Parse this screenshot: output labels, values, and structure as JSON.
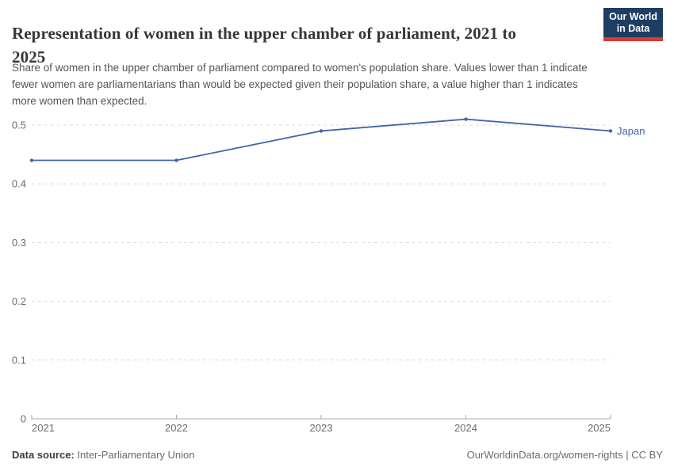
{
  "header": {
    "title": "Representation of women in the upper chamber of parliament, 2021 to 2025",
    "title_lines": [
      "Representation of women in the upper chamber of parliament, 2021 to",
      "2025"
    ],
    "subtitle": "Share of women in the upper chamber of parliament compared to women's population share. Values lower than 1 indicate fewer women are parliamentarians than would be expected given their population share, a value higher than 1 indicates more women than expected.",
    "subtitle_lines": [
      "Share of women in the upper chamber of parliament compared to women's population share. Values lower than 1 indicate",
      "fewer women are parliamentarians than would be expected given their population share, a value higher than 1 indicates",
      "more women than expected."
    ],
    "logo": {
      "line1": "Our World",
      "line2": "in Data",
      "bg_color": "#1d3d63",
      "accent_color": "#d93a34"
    }
  },
  "chart_data": {
    "type": "line",
    "title": "Representation of women in the upper chamber of parliament, 2021 to 2025",
    "x": [
      2021,
      2022,
      2023,
      2024,
      2025
    ],
    "series": [
      {
        "name": "Japan",
        "values": [
          0.44,
          0.44,
          0.49,
          0.51,
          0.49
        ],
        "color": "#4465a5"
      }
    ],
    "xlabel": "",
    "ylabel": "",
    "ylim": [
      0,
      0.5
    ],
    "yticks": [
      0,
      0.1,
      0.2,
      0.3,
      0.4,
      0.5
    ],
    "xticks": [
      2021,
      2022,
      2023,
      2024,
      2025
    ],
    "grid": "horizontal dashed",
    "legend_position": "end-of-line label"
  },
  "footer": {
    "source_label": "Data source:",
    "source_value": "Inter-Parliamentary Union",
    "right_text": "OurWorldinData.org/women-rights | CC BY"
  },
  "colors": {
    "line": "#4465a5",
    "logo_bg": "#1d3d63",
    "logo_accent": "#d93a34",
    "gridline": "#dcdcdc",
    "axis": "#a8a8a8",
    "tick_text": "#6b6b6b"
  }
}
